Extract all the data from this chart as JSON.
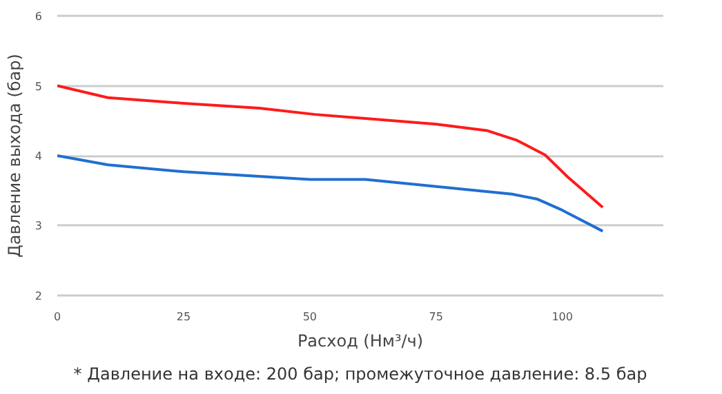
{
  "chart_data": {
    "type": "line",
    "xlabel": "Расход (Нм³/ч)",
    "ylabel": "Давление выхода (бар)",
    "xlim": [
      0,
      120
    ],
    "xticks": [
      0,
      25,
      50,
      75,
      100
    ],
    "ylim": [
      2,
      6
    ],
    "yticks": [
      2,
      3,
      4,
      5,
      6
    ],
    "grid": "y",
    "marker": "none",
    "line_style": "solid",
    "annotations": [
      "* Давление на входе: 200 бар; промежуточное давление: 8.5 бар"
    ],
    "series": [
      {
        "color": "#ff1a1a",
        "x": [
          0,
          10,
          25,
          40,
          51,
          75,
          85,
          91,
          96.6,
          101,
          108
        ],
        "values": [
          5.0,
          4.83,
          4.75,
          4.68,
          4.59,
          4.45,
          4.36,
          4.22,
          4.01,
          3.7,
          3.26
        ]
      },
      {
        "color": "#1f6fd0",
        "x": [
          0,
          10,
          25,
          50,
          61,
          75,
          90,
          95,
          100,
          108
        ],
        "values": [
          4.0,
          3.87,
          3.77,
          3.66,
          3.66,
          3.56,
          3.45,
          3.38,
          3.22,
          2.92
        ]
      }
    ]
  }
}
